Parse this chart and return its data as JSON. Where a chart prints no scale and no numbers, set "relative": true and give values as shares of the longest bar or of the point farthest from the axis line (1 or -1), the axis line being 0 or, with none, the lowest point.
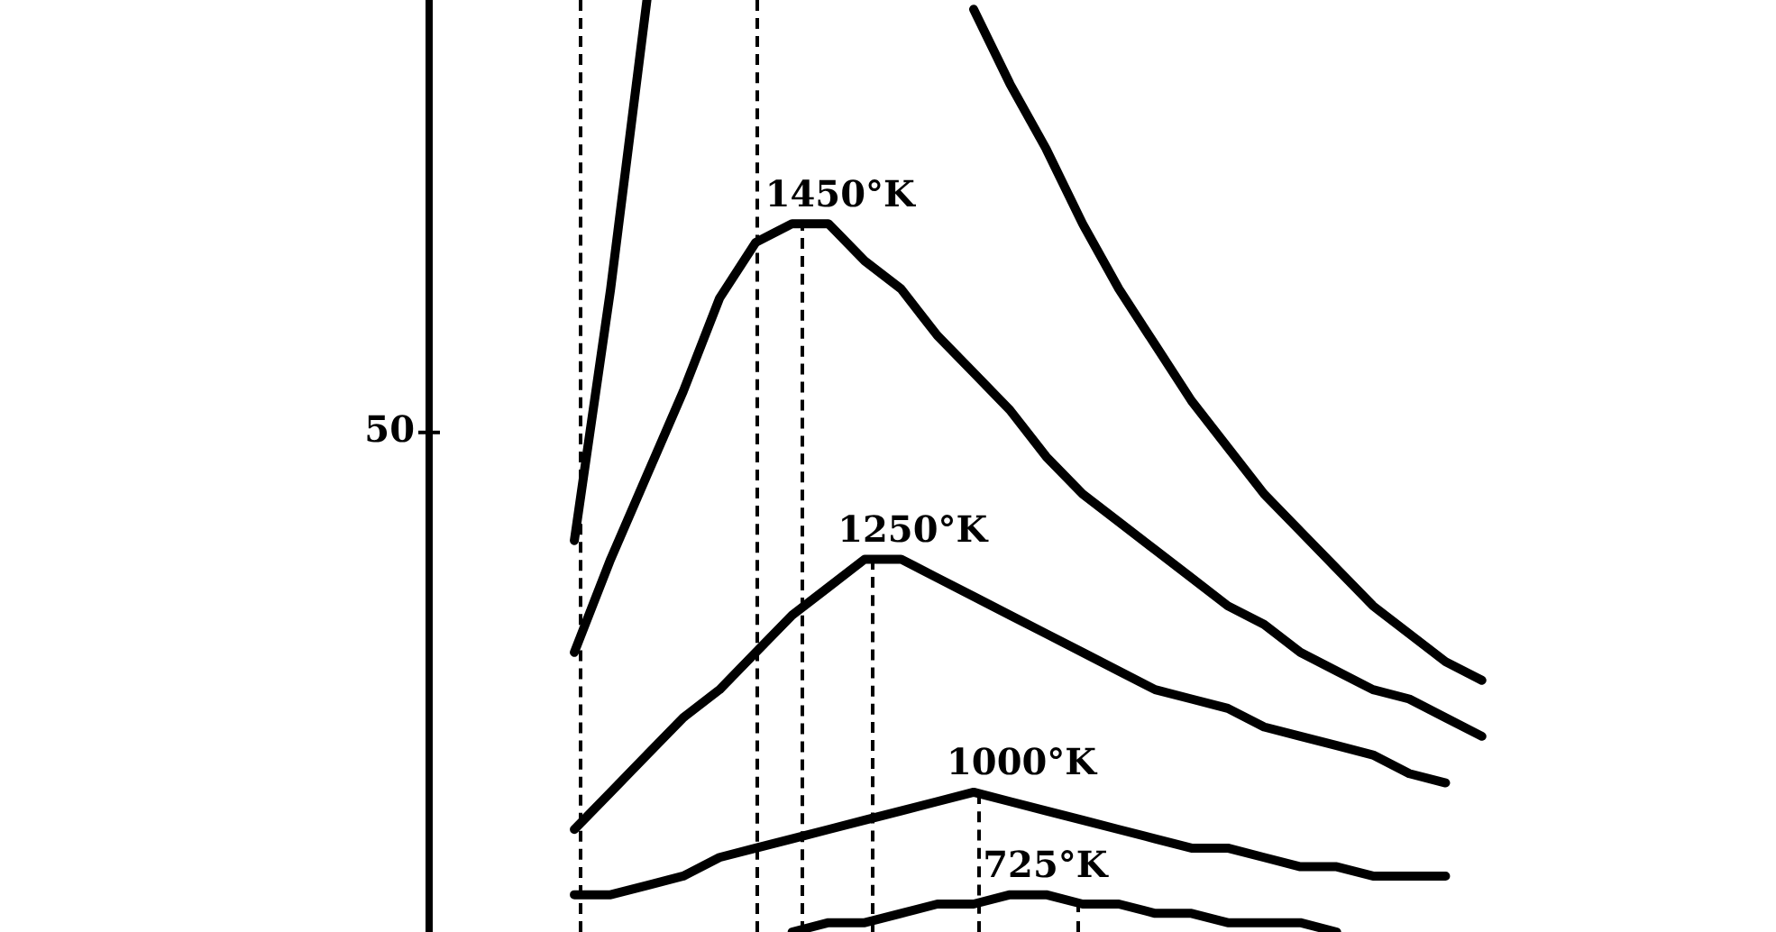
{
  "chart_data": {
    "type": "line",
    "relative": true,
    "grid": false,
    "legend": false,
    "marker": "none",
    "line_style": "solid",
    "categories": [
      null,
      null,
      null,
      null,
      null,
      null,
      null,
      null,
      null,
      null,
      null,
      null,
      null,
      null,
      null,
      null,
      null,
      null,
      null,
      null,
      null,
      null,
      null,
      null,
      null,
      null,
      null,
      null,
      null,
      null,
      null
    ],
    "series": [
      {
        "color": "#000000",
        "values": [
          null,
          null,
          null,
          null,
          0.42,
          0.69,
          1.0,
          null,
          null,
          null,
          null,
          null,
          null,
          null,
          null,
          0.99,
          0.91,
          0.84,
          0.76,
          0.69,
          0.63,
          0.57,
          0.52,
          0.47,
          0.43,
          0.39,
          0.35,
          0.32,
          0.29,
          0.27,
          null
        ]
      },
      {
        "name": "1450°K",
        "color": "#000000",
        "values": [
          null,
          null,
          null,
          null,
          0.3,
          0.4,
          0.49,
          0.58,
          0.68,
          0.74,
          0.76,
          0.76,
          0.72,
          0.69,
          0.64,
          0.6,
          0.56,
          0.51,
          0.47,
          0.44,
          0.41,
          0.38,
          0.35,
          0.33,
          0.3,
          0.28,
          0.26,
          0.25,
          0.23,
          0.21,
          null
        ]
      },
      {
        "name": "1250°K",
        "color": "#000000",
        "values": [
          null,
          null,
          null,
          null,
          0.11,
          0.15,
          0.19,
          0.23,
          0.26,
          0.3,
          0.34,
          0.37,
          0.4,
          0.4,
          0.38,
          0.36,
          0.34,
          0.32,
          0.3,
          0.28,
          0.26,
          0.25,
          0.24,
          0.22,
          0.21,
          0.2,
          0.19,
          0.17,
          0.16,
          null,
          null
        ]
      },
      {
        "name": "1000°K",
        "color": "#000000",
        "values": [
          null,
          null,
          null,
          null,
          0.04,
          0.04,
          0.05,
          0.06,
          0.08,
          0.09,
          0.1,
          0.11,
          0.12,
          0.13,
          0.14,
          0.15,
          0.14,
          0.13,
          0.12,
          0.11,
          0.1,
          0.09,
          0.09,
          0.08,
          0.07,
          0.07,
          0.06,
          0.06,
          0.06,
          null,
          null
        ]
      },
      {
        "name": "725°K",
        "color": "#000000",
        "values": [
          null,
          null,
          null,
          null,
          null,
          null,
          null,
          null,
          null,
          null,
          0.0,
          0.01,
          0.01,
          0.02,
          0.03,
          0.03,
          0.04,
          0.04,
          0.03,
          0.03,
          0.02,
          0.02,
          0.01,
          0.01,
          0.01,
          0.0,
          null,
          null,
          null,
          null,
          null
        ]
      }
    ],
    "annotations": [
      "50"
    ]
  }
}
